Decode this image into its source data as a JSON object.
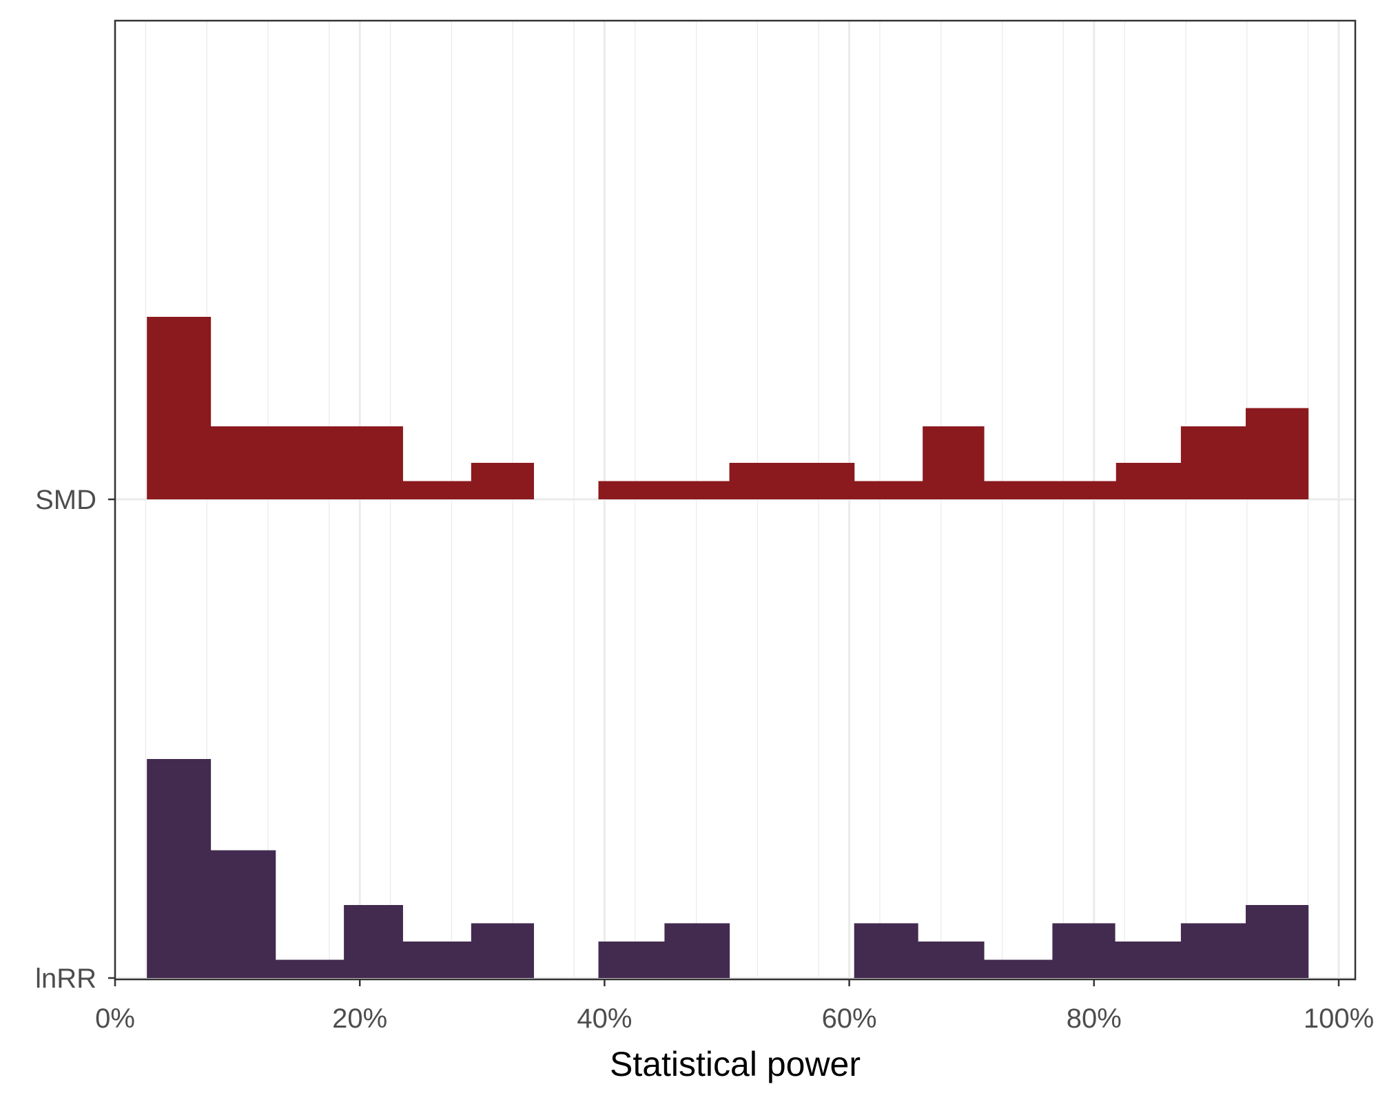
{
  "chart_data": {
    "type": "ridgeline-histogram",
    "title": "",
    "xlabel": "Statistical power",
    "ylabel": "",
    "xlim": [
      0,
      1
    ],
    "x_ticks": [
      {
        "value": 0.0,
        "label": "0%"
      },
      {
        "value": 0.2,
        "label": "20%"
      },
      {
        "value": 0.4,
        "label": "40%"
      },
      {
        "value": 0.6,
        "label": "60%"
      },
      {
        "value": 0.8,
        "label": "80%"
      },
      {
        "value": 1.0,
        "label": "100%"
      }
    ],
    "grid": true,
    "categories": [
      "SMD",
      "lnRR"
    ],
    "series": [
      {
        "name": "SMD",
        "color": "#8B1A1E",
        "bins": [
          {
            "x0": 0.026,
            "x1": 0.078,
            "count": 10
          },
          {
            "x0": 0.078,
            "x1": 0.131,
            "count": 4
          },
          {
            "x0": 0.131,
            "x1": 0.183,
            "count": 4
          },
          {
            "x0": 0.183,
            "x1": 0.235,
            "count": 4
          },
          {
            "x0": 0.235,
            "x1": 0.291,
            "count": 1
          },
          {
            "x0": 0.291,
            "x1": 0.342,
            "count": 2
          },
          {
            "x0": 0.395,
            "x1": 0.449,
            "count": 1
          },
          {
            "x0": 0.449,
            "x1": 0.502,
            "count": 1
          },
          {
            "x0": 0.502,
            "x1": 0.554,
            "count": 2
          },
          {
            "x0": 0.554,
            "x1": 0.604,
            "count": 2
          },
          {
            "x0": 0.604,
            "x1": 0.66,
            "count": 1
          },
          {
            "x0": 0.66,
            "x1": 0.71,
            "count": 4
          },
          {
            "x0": 0.71,
            "x1": 0.766,
            "count": 1
          },
          {
            "x0": 0.766,
            "x1": 0.818,
            "count": 1
          },
          {
            "x0": 0.818,
            "x1": 0.871,
            "count": 2
          },
          {
            "x0": 0.871,
            "x1": 0.924,
            "count": 4
          },
          {
            "x0": 0.924,
            "x1": 0.975,
            "count": 5
          }
        ]
      },
      {
        "name": "lnRR",
        "color": "#432A4F",
        "bins": [
          {
            "x0": 0.026,
            "x1": 0.078,
            "count": 12
          },
          {
            "x0": 0.078,
            "x1": 0.131,
            "count": 7
          },
          {
            "x0": 0.131,
            "x1": 0.187,
            "count": 1
          },
          {
            "x0": 0.187,
            "x1": 0.235,
            "count": 4
          },
          {
            "x0": 0.235,
            "x1": 0.291,
            "count": 2
          },
          {
            "x0": 0.291,
            "x1": 0.342,
            "count": 3
          },
          {
            "x0": 0.395,
            "x1": 0.449,
            "count": 2
          },
          {
            "x0": 0.449,
            "x1": 0.502,
            "count": 3
          },
          {
            "x0": 0.604,
            "x1": 0.656,
            "count": 3
          },
          {
            "x0": 0.656,
            "x1": 0.71,
            "count": 2
          },
          {
            "x0": 0.71,
            "x1": 0.766,
            "count": 1
          },
          {
            "x0": 0.766,
            "x1": 0.817,
            "count": 3
          },
          {
            "x0": 0.817,
            "x1": 0.871,
            "count": 2
          },
          {
            "x0": 0.871,
            "x1": 0.924,
            "count": 3
          },
          {
            "x0": 0.924,
            "x1": 0.975,
            "count": 4
          }
        ]
      }
    ]
  }
}
